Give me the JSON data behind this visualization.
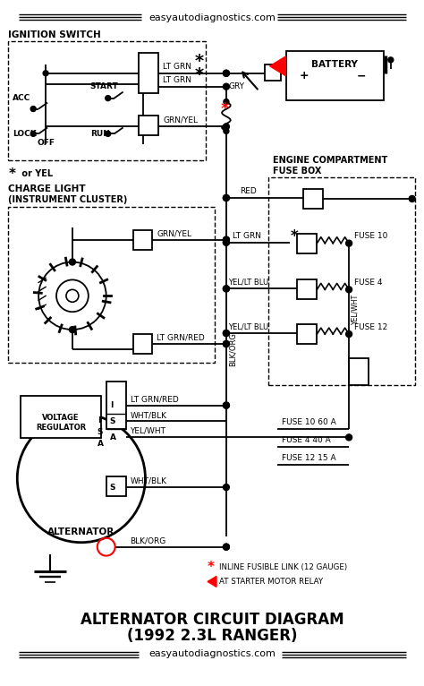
{
  "title_line1": "ALTERNATOR CIRCUIT DIAGRAM",
  "title_line2": "(1992 2.3L RANGER)",
  "website": "easyautodiagnostics.com",
  "bg_color": "#ffffff",
  "fig_width": 4.74,
  "fig_height": 7.66,
  "dpi": 100
}
